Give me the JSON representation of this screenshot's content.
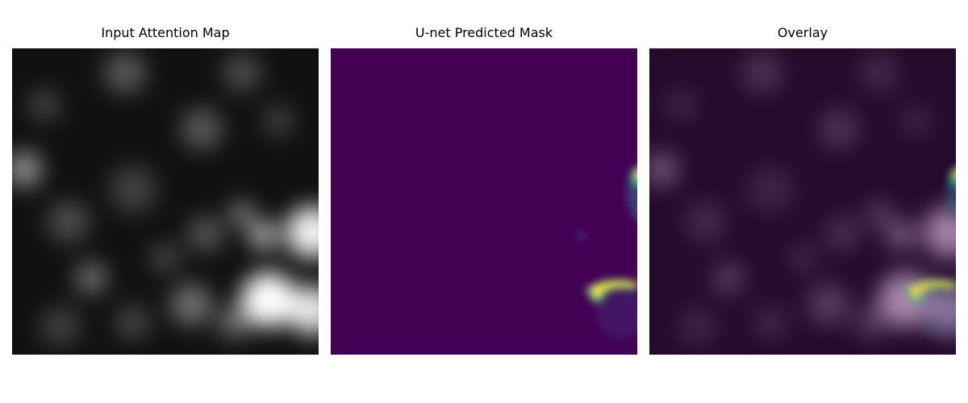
{
  "panels": [
    {
      "title": "Input Attention Map"
    },
    {
      "title": "U-net Predicted Mask"
    },
    {
      "title": "Overlay"
    }
  ]
}
